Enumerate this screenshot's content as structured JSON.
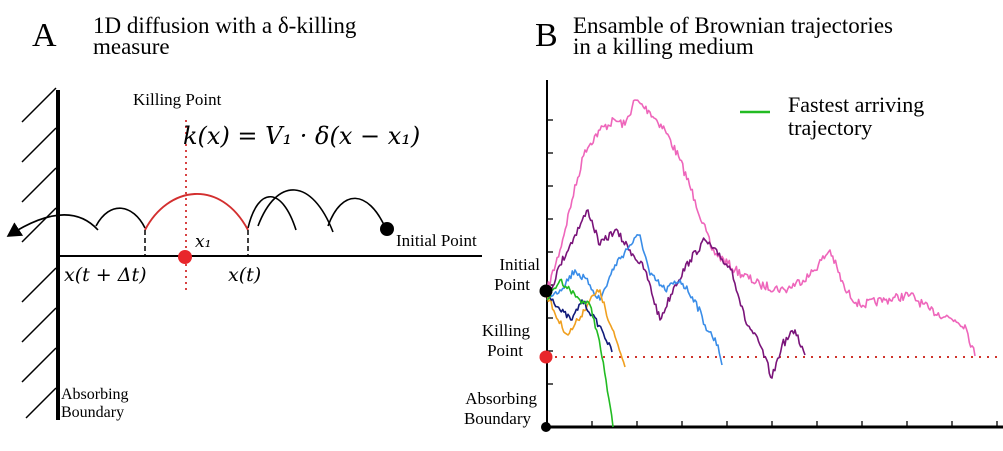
{
  "panel_a": {
    "letter": "A",
    "title_line1": "1D diffusion with a δ-killing",
    "title_line2": "measure",
    "killing_point_label": "Killing Point",
    "formula": "k(x) = V₁ · δ(x − x₁)",
    "x1_label": "x₁",
    "x_t_dt_label": "x(t + Δt)",
    "x_t_label": "x(t)",
    "initial_point_label": "Initial Point",
    "absorbing_label_line1": "Absorbing",
    "absorbing_label_line2": "Boundary",
    "colors": {
      "jump_highlight": "#d32f2f",
      "killing_dot": "#e8262b",
      "line": "#000000"
    }
  },
  "panel_b": {
    "letter": "B",
    "title_line1": "Ensamble of Brownian trajectories",
    "title_line2": "in a killing medium",
    "legend_label_line1": "Fastest arriving",
    "legend_label_line2": "trajectory",
    "initial_label_line1": "Initial",
    "initial_label_line2": "Point",
    "killing_label_line1": "Killing",
    "killing_label_line2": "Point",
    "absorbing_label_line1": "Absorbing",
    "absorbing_label_line2": "Boundary",
    "colors": {
      "fastest": "#22bb22",
      "pink": "#ee66bb",
      "purple": "#7a147a",
      "blue": "#3a8de8",
      "orange": "#f0a020",
      "navy": "#101a7a",
      "killing_line": "#d0342c",
      "killing_dot": "#e8262b"
    }
  }
}
